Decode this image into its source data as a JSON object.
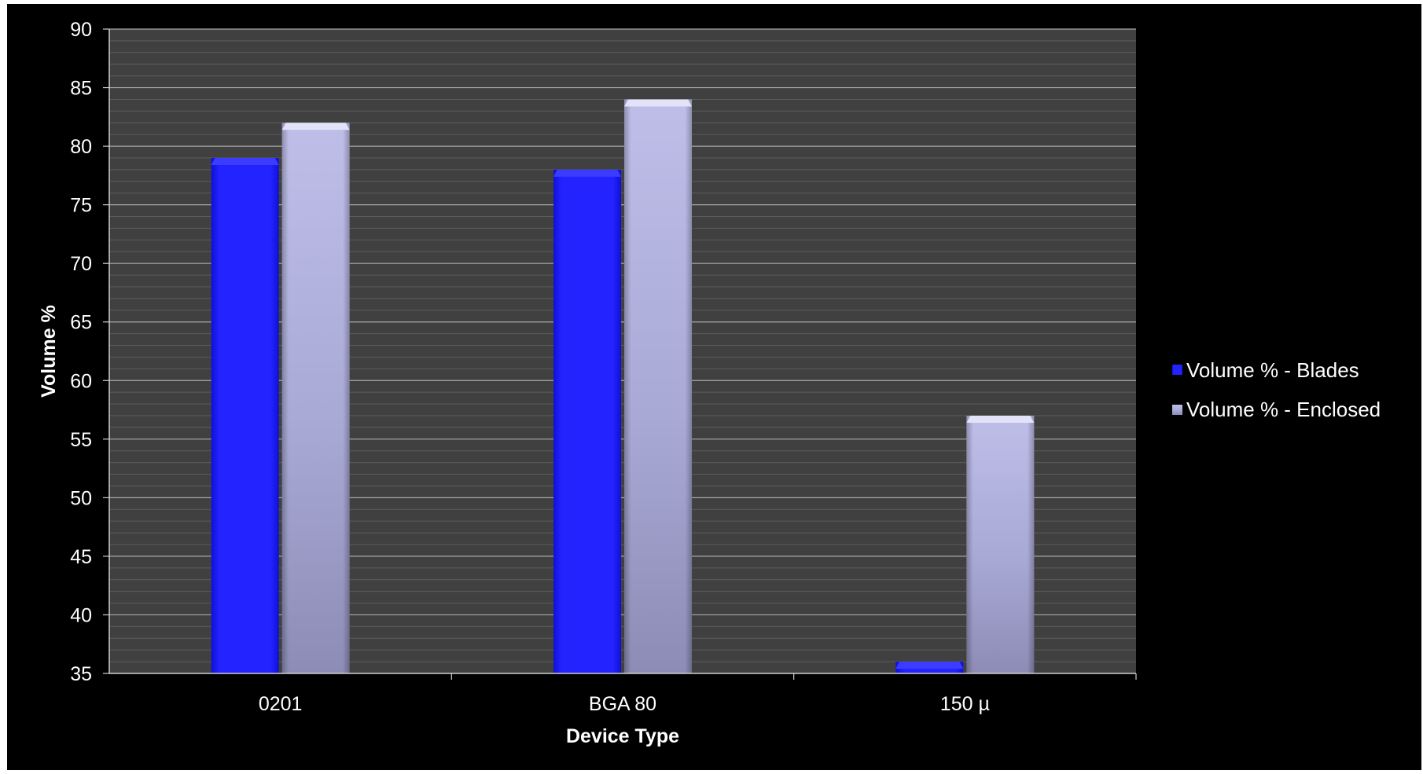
{
  "chart_data": {
    "type": "bar",
    "categories": [
      "0201",
      "BGA 80",
      "150 µ"
    ],
    "series": [
      {
        "name": "Volume % - Blades",
        "values": [
          79,
          78,
          36
        ]
      },
      {
        "name": "Volume % - Enclosed",
        "values": [
          82,
          84,
          57
        ]
      }
    ],
    "xlabel": "Device Type",
    "ylabel": "Volume %",
    "ylim": [
      35,
      90
    ],
    "ytick_step": 5,
    "grid": "horizontal major and minor",
    "legend_position": "right",
    "colors": {
      "Volume % - Blades": "#1f1fff",
      "Volume % - Enclosed": "#b9b9e6",
      "plot_background": "#404040",
      "chart_background": "#000000"
    }
  }
}
